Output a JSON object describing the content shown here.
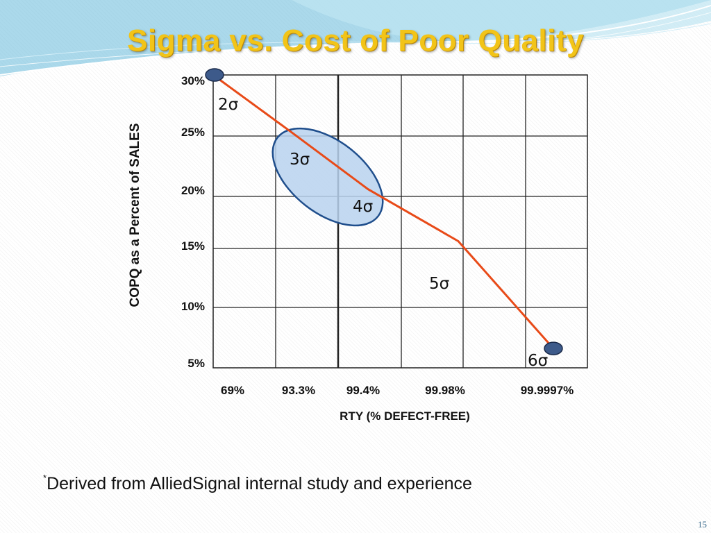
{
  "slide": {
    "title": "Sigma vs. Cost of Poor Quality",
    "footnote_marker": "*",
    "footnote_text": "Derived from AlliedSignal internal study and experience",
    "page_number": "15",
    "colors": {
      "title": "#f2c418",
      "line": "#e84a18",
      "endpoint": "#3d5a8a",
      "highlight_fill": "#b9d2ee",
      "highlight_stroke": "#1f4e8c",
      "header_wave": "#5fb3d6"
    }
  },
  "chart_data": {
    "type": "line",
    "xlabel": "RTY (% DEFECT-FREE)",
    "ylabel": "COPQ as a Percent of SALES",
    "x_tick_labels": [
      "69%",
      "93.3%",
      "99.4%",
      "99.98%",
      "99.9997%"
    ],
    "y_tick_labels": [
      "5%",
      "10%",
      "15%",
      "20%",
      "25%",
      "30%"
    ],
    "y_tick_values": [
      5,
      10,
      15,
      20,
      25,
      30
    ],
    "ylim": [
      5,
      30
    ],
    "grid": true,
    "series": [
      {
        "sigma": [
          2,
          3,
          4,
          5,
          6
        ],
        "rty": [
          "69%",
          "93.3%",
          "99.4%",
          "99.98%",
          "99.9997%"
        ],
        "copq_percent": [
          30,
          25.3,
          20.6,
          15.7,
          6.6
        ]
      }
    ],
    "annotations": [
      {
        "text": "2σ",
        "sigma": 2
      },
      {
        "text": "3σ",
        "sigma": 3
      },
      {
        "text": "4σ",
        "sigma": 4
      },
      {
        "text": "5σ",
        "sigma": 5
      },
      {
        "text": "6σ",
        "sigma": 6
      }
    ],
    "highlight": {
      "sigma_range": [
        3,
        4
      ],
      "shape": "ellipse"
    }
  }
}
